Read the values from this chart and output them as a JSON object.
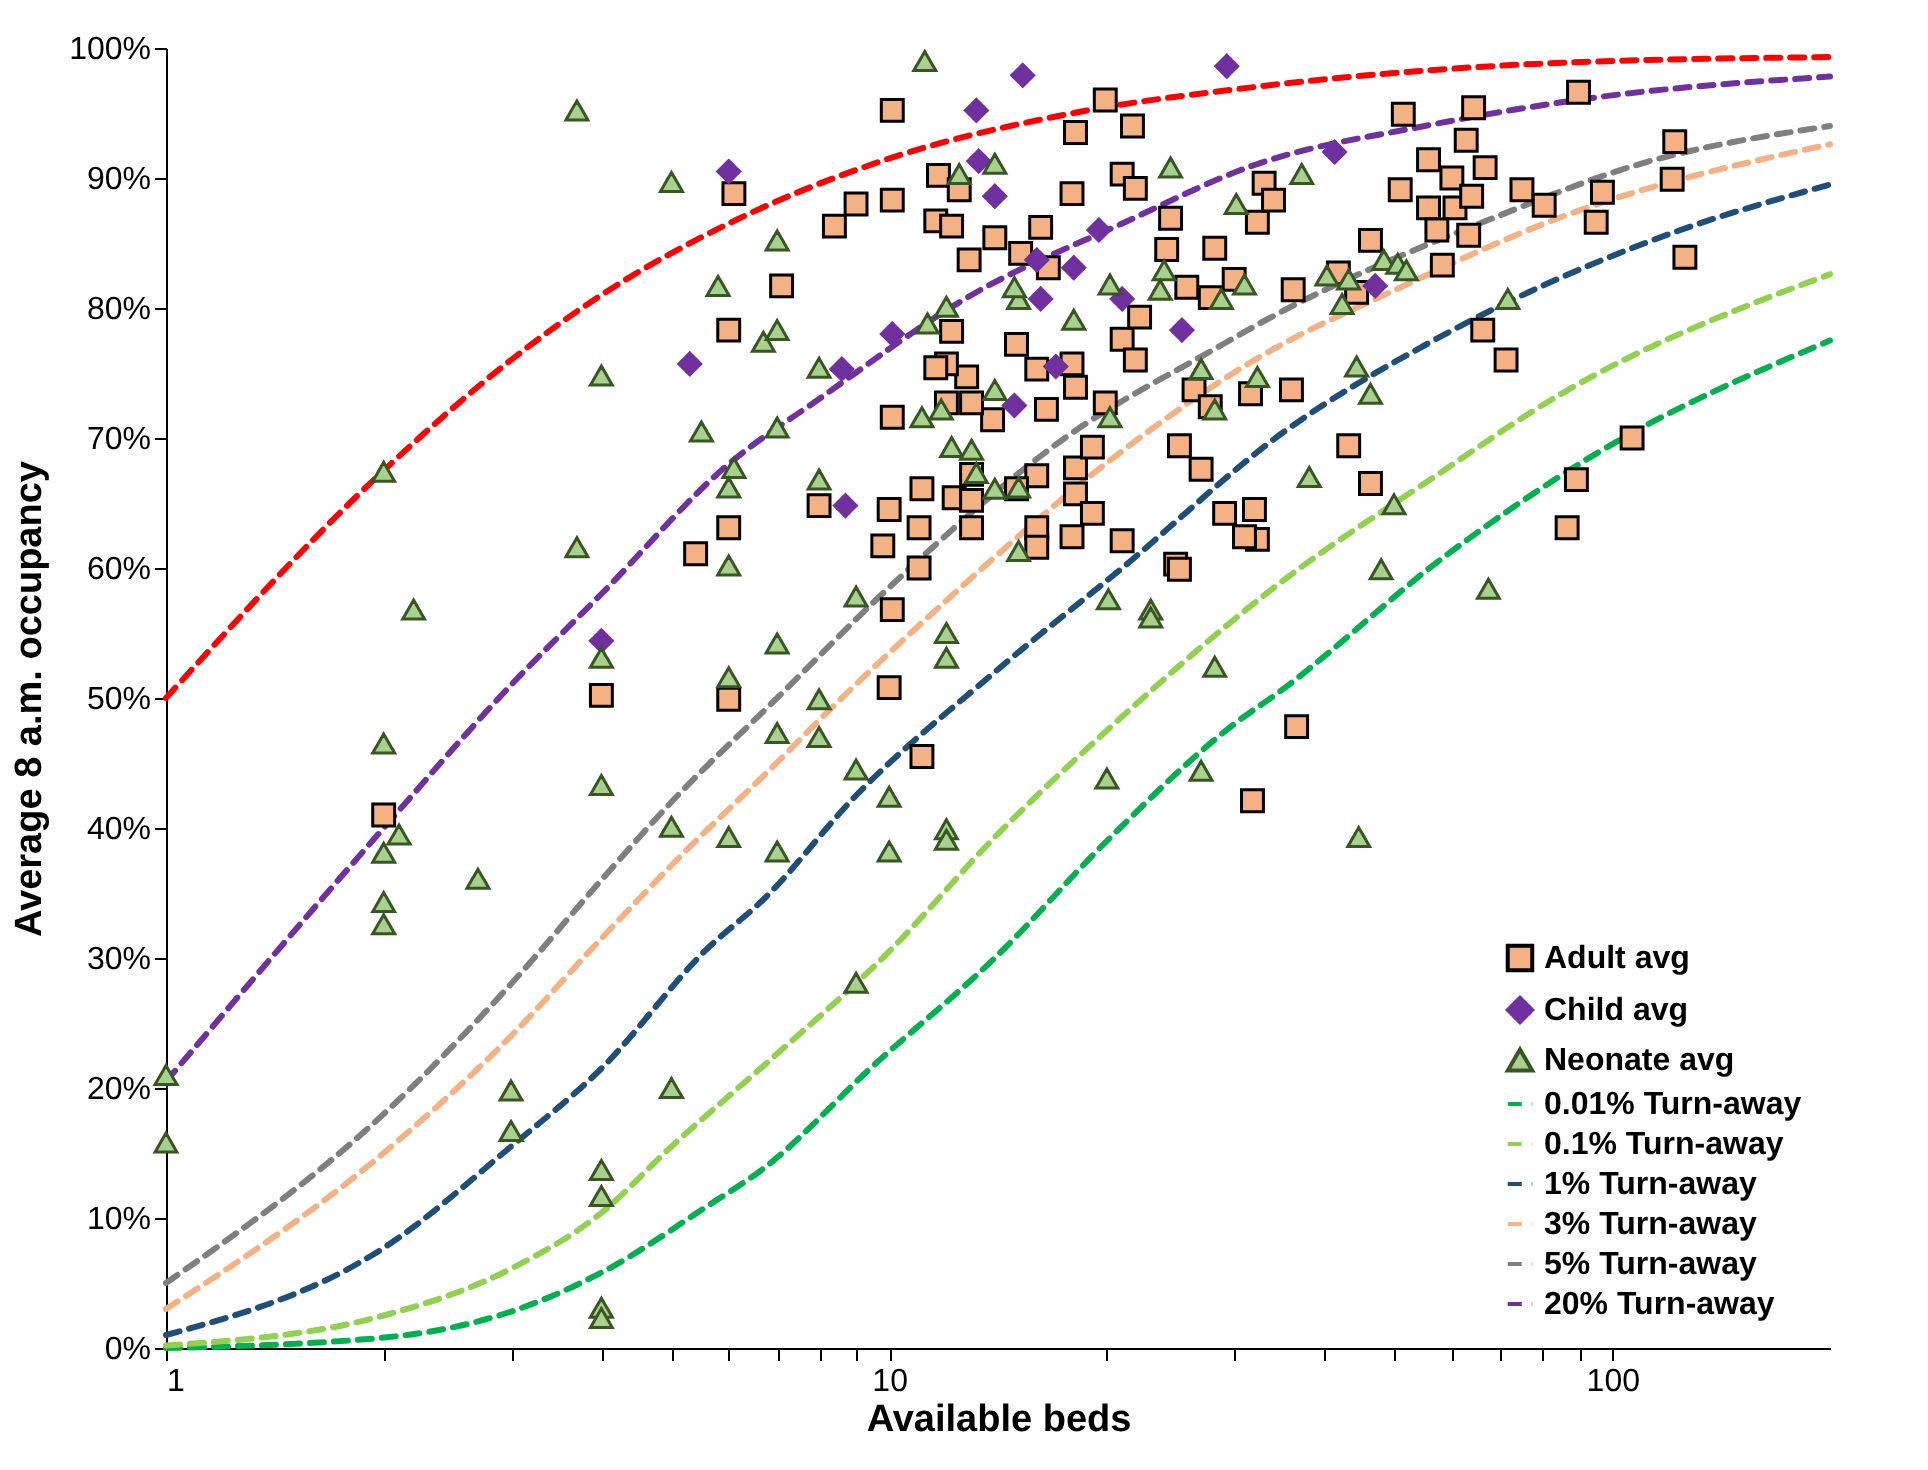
{
  "chart_data": {
    "type": "scatter",
    "xlabel": "Available beds",
    "ylabel": "Average 8 a.m. occupancy",
    "log": "x",
    "xlim": [
      1,
      200
    ],
    "ylim": [
      0,
      100
    ],
    "xticks": [
      1,
      {
        "value": 2,
        "label": null
      },
      {
        "value": 3,
        "label": null
      },
      {
        "value": 4,
        "label": null
      },
      {
        "value": 5,
        "label": null
      },
      {
        "value": 6,
        "label": null
      },
      {
        "value": 7,
        "label": null
      },
      {
        "value": 8,
        "label": null
      },
      {
        "value": 9,
        "label": null
      },
      10,
      {
        "value": 20,
        "label": null
      },
      {
        "value": 30,
        "label": null
      },
      {
        "value": 40,
        "label": null
      },
      {
        "value": 50,
        "label": null
      },
      {
        "value": 60,
        "label": null
      },
      {
        "value": 70,
        "label": null
      },
      {
        "value": 80,
        "label": null
      },
      {
        "value": 90,
        "label": null
      },
      100
    ],
    "yticks": [
      {
        "value": 0,
        "label": "0%"
      },
      {
        "value": 10,
        "label": "10%"
      },
      {
        "value": 20,
        "label": "20%"
      },
      {
        "value": 30,
        "label": "30%"
      },
      {
        "value": 40,
        "label": "40%"
      },
      {
        "value": 50,
        "label": "50%"
      },
      {
        "value": 60,
        "label": "60%"
      },
      {
        "value": 70,
        "label": "70%"
      },
      {
        "value": 80,
        "label": "80%"
      },
      {
        "value": 90,
        "label": "90%"
      },
      {
        "value": 100,
        "label": "100%"
      }
    ],
    "grid": false,
    "legend": "bottom right",
    "series": [
      {
        "name": "Adult avg",
        "marker": "square",
        "color": "#f4b183",
        "x": [
          6.1,
          6.0,
          6.0,
          5.4,
          4.0,
          6.0,
          7.1,
          8.0,
          10.0,
          10.1,
          11.0,
          9.8,
          11.0,
          10.0,
          11.1,
          12.3,
          13.0,
          13.0,
          13.0,
          16.0,
          15.0,
          16.0,
          16.0,
          17.9,
          18.1,
          18.1,
          19.1,
          19.1,
          21.0,
          24.9,
          25.2,
          29.1,
          32.0,
          32.3,
          31.0,
          27.0,
          25.2,
          19.9,
          16.5,
          13.9,
          13.0,
          12.0,
          12.8,
          12.0,
          11.6,
          16.0,
          17.9,
          18.1,
          15.0,
          12.2,
          21.0,
          21.9,
          22.2,
          16.6,
          15.2,
          16.2,
          14.0,
          12.9,
          17.9,
          21.0,
          21.9,
          24.5,
          24.2,
          25.8,
          27.8,
          28.2,
          30.0,
          32.3,
          33.0,
          34.0,
          36.2,
          36.0,
          31.6,
          26.4,
          27.8,
          18.1,
          19.9,
          21.7,
          10.1,
          11.7,
          12.5,
          10.1,
          9.0,
          8.4,
          11.6,
          12.2,
          10.1,
          11.1,
          31.8,
          36.6,
          51.4,
          64.3,
          89.8,
          62.8,
          55.7,
          60.0,
          66.7,
          50.9,
          55.7,
          60.6,
          63.9,
          75.0,
          80.5,
          96.9,
          95.0,
          122,
          121,
          126,
          57.2,
          63.3,
          46.3,
          58.2,
          41.8,
          44.3,
          66.2,
          71.3,
          43.2,
          46.3,
          106.5,
          89.2,
          86.6,
          2.0
        ],
        "values": [
          88.8,
          78.3,
          63.1,
          61.1,
          50.2,
          49.9,
          81.7,
          64.8,
          50.8,
          56.8,
          60.0,
          61.7,
          63.1,
          64.5,
          66.1,
          65.4,
          65.2,
          63.1,
          67.2,
          67.1,
          66.1,
          63.1,
          61.6,
          62.4,
          65.7,
          67.7,
          69.3,
          64.2,
          62.1,
          60.3,
          59.9,
          64.2,
          64.5,
          62.2,
          62.4,
          67.6,
          69.4,
          72.7,
          72.2,
          71.4,
          72.7,
          72.7,
          74.7,
          75.7,
          75.4,
          75.3,
          75.7,
          73.9,
          77.2,
          78.2,
          77.6,
          76.0,
          79.3,
          83.1,
          84.2,
          86.2,
          85.4,
          83.7,
          88.8,
          90.3,
          89.2,
          86.9,
          84.5,
          81.6,
          80.8,
          84.6,
          82.2,
          86.6,
          89.6,
          88.3,
          81.4,
          73.7,
          73.4,
          73.7,
          72.4,
          93.5,
          96.0,
          94.0,
          95.2,
          90.2,
          89.1,
          88.3,
          88.0,
          86.3,
          86.7,
          86.3,
          71.6,
          45.5,
          42.1,
          47.8,
          94.9,
          95.4,
          96.6,
          92.9,
          91.4,
          90.0,
          90.8,
          89.1,
          87.7,
          87.7,
          88.6,
          89.1,
          87.9,
          88.9,
          86.6,
          92.8,
          89.9,
          83.9,
          86.0,
          85.6,
          85.2,
          83.3,
          82.7,
          81.2,
          78.3,
          76.0,
          69.4,
          66.5,
          70.0,
          66.8,
          63.1,
          41.0
        ]
      },
      {
        "name": "Child avg",
        "marker": "diamond",
        "color": "#7030a0",
        "x": [
          6.0,
          5.3,
          4.0,
          8.6,
          10.1,
          8.7,
          14.9,
          17.0,
          21.0,
          25.4,
          16.2,
          16.0,
          18.0,
          19.5,
          15.3,
          13.2,
          29.3,
          13.3,
          14.0,
          41.3,
          47.0
        ],
        "values": [
          90.5,
          75.7,
          54.4,
          75.3,
          78.0,
          64.8,
          72.5,
          75.5,
          80.7,
          78.3,
          80.7,
          83.7,
          83.1,
          86.0,
          97.9,
          95.2,
          98.6,
          91.3,
          88.6,
          92.0,
          81.7
        ]
      },
      {
        "name": "Neonate avg",
        "marker": "triangle",
        "color": "#a9d18e",
        "x": [
          3.7,
          5.0,
          5.8,
          6.7,
          4.0,
          5.5,
          2.0,
          6.1,
          6.0,
          6.0,
          3.7,
          2.2,
          4.0,
          6.0,
          7.0,
          7.0,
          8.0,
          7.0,
          8.0,
          9.0,
          7.0,
          8.0,
          12.0,
          12.0,
          12.2,
          13.0,
          13.2,
          14.0,
          15.1,
          15.1,
          20.1,
          23.0,
          23.0,
          28.2,
          20.2,
          11.8,
          11.1,
          14.0,
          11.3,
          12.0,
          18.0,
          20.2,
          15.1,
          14.9,
          24.0,
          23.7,
          28.8,
          31.0,
          30.2,
          37.2,
          32.3,
          28.2,
          27.0,
          24.5,
          11.2,
          12.5,
          14.0,
          48.3,
          50.5,
          51.9,
          40.3,
          43.2,
          42.3,
          71.7,
          44.3,
          46.3,
          38.1,
          49.9,
          47.9,
          67.4,
          2.0,
          2.1,
          2.0,
          2.7,
          2.0,
          2.0,
          4.0,
          5.0,
          6.0,
          1.0,
          1.0,
          3.0,
          3.0,
          5.0,
          4.0,
          4.0,
          4.0,
          4.0,
          7.0,
          8.0,
          9.0,
          10.0,
          7.0,
          10.0,
          12.0,
          12.0,
          9.0,
          20.0,
          27.0,
          44.6
        ],
        "values": [
          95.2,
          89.7,
          81.7,
          77.4,
          74.8,
          70.5,
          67.4,
          67.7,
          66.2,
          60.2,
          61.6,
          56.8,
          53.1,
          51.6,
          85.2,
          78.3,
          75.4,
          70.8,
          66.8,
          57.8,
          54.2,
          49.9,
          55.0,
          53.1,
          69.3,
          69.1,
          67.3,
          66.1,
          66.2,
          61.3,
          57.6,
          56.8,
          56.2,
          52.4,
          71.6,
          72.2,
          71.6,
          73.7,
          78.8,
          80.1,
          79.1,
          81.8,
          80.7,
          81.6,
          82.9,
          81.4,
          80.7,
          81.8,
          88.0,
          90.3,
          74.7,
          72.2,
          75.3,
          90.8,
          99.0,
          90.3,
          91.1,
          83.7,
          83.4,
          82.9,
          82.5,
          82.2,
          80.3,
          80.7,
          75.5,
          73.4,
          67.0,
          64.9,
          59.9,
          58.4,
          46.5,
          39.5,
          38.1,
          36.1,
          34.3,
          32.6,
          43.3,
          40.1,
          39.3,
          21.0,
          15.8,
          19.8,
          16.7,
          20.0,
          13.7,
          11.7,
          3.1,
          2.3,
          47.3,
          47.0,
          44.5,
          42.4,
          38.2,
          38.2,
          39.9,
          39.1,
          28.1,
          43.8,
          44.4,
          39.3
        ]
      },
      {
        "name": "0.01% Turn-away",
        "type": "line",
        "line_style": "dashed",
        "color": "#00b050",
        "x": [
          1,
          2,
          3,
          4,
          5.6,
          6.7,
          9.5,
          14,
          20,
          30,
          34.5,
          59,
          95,
          200
        ],
        "values": [
          0,
          0.8,
          2.8,
          5.8,
          10.9,
          13.8,
          21.7,
          30,
          39,
          48,
          50.4,
          61,
          68.8,
          77.5
        ]
      },
      {
        "name": "0.1% Turn-away",
        "type": "line",
        "line_style": "dashed",
        "color": "#92d050",
        "x": [
          1,
          2,
          3,
          4,
          5,
          6.7,
          10,
          14,
          20,
          35,
          56,
          85,
          200
        ],
        "values": [
          0.2,
          2.5,
          6.1,
          10.4,
          15.5,
          21.7,
          30.5,
          39.3,
          47.5,
          59,
          66.8,
          73.4,
          82.6
        ]
      },
      {
        "name": "1% Turn-away",
        "type": "line",
        "line_style": "dashed",
        "color": "#1f4e79",
        "x": [
          1,
          2,
          3,
          4,
          5.6,
          6.7,
          9,
          14,
          21,
          35,
          57,
          120,
          200
        ],
        "values": [
          1,
          7.7,
          15.5,
          21.5,
          30.7,
          34.5,
          42.5,
          52,
          60,
          70.4,
          77.6,
          85.7,
          89.5
        ]
      },
      {
        "name": "3% Turn-away",
        "type": "line",
        "line_style": "dashed",
        "color": "#f4b183",
        "x": [
          1,
          2,
          3,
          4,
          5.4,
          6.7,
          8.6,
          12,
          21,
          32,
          51,
          85,
          200
        ],
        "values": [
          3,
          15,
          24,
          31.5,
          39,
          44,
          50,
          57.5,
          69,
          76,
          81.6,
          87,
          92.6
        ]
      },
      {
        "name": "5% Turn-away",
        "type": "line",
        "line_style": "dashed",
        "color": "#7f7f7f",
        "x": [
          1,
          2,
          3,
          4,
          5,
          7,
          10,
          17.5,
          28.5,
          33,
          69,
          108,
          200
        ],
        "values": [
          5,
          18,
          28,
          36,
          42,
          50,
          58.5,
          70,
          77,
          79,
          87,
          91,
          94
        ]
      },
      {
        "name": "20% Turn-away",
        "type": "line",
        "line_style": "dashed",
        "color": "#7030a0",
        "x": [
          1,
          2,
          3,
          4,
          6,
          8,
          13,
          21,
          32,
          55,
          95,
          200
        ],
        "values": [
          20.5,
          40,
          51,
          58,
          68,
          73,
          81,
          86.5,
          91,
          94,
          96.2,
          97.8
        ]
      },
      {
        "type": "line",
        "line_style": "dashed",
        "color": "#ff0000",
        "x": [
          1,
          2,
          3,
          4,
          6,
          10,
          18,
          32,
          80,
          200
        ],
        "values": [
          50,
          67.5,
          76,
          81,
          86.5,
          91.5,
          95,
          97,
          98.8,
          99.3
        ]
      }
    ]
  }
}
